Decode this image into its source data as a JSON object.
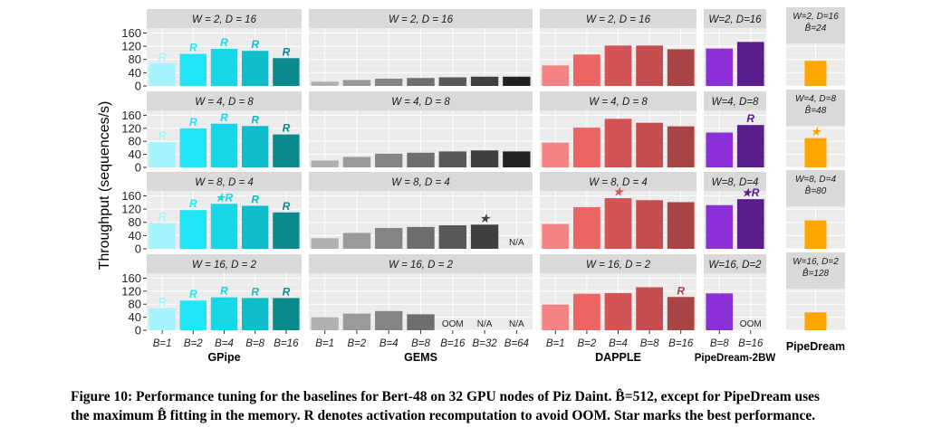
{
  "chart_data": {
    "type": "bar",
    "ylabel": "Throughput (sequences/s)",
    "yticks": [
      0,
      40,
      80,
      120,
      160
    ],
    "ylim": [
      0,
      175
    ],
    "grid": true,
    "rows": [
      {
        "label": "W = 2, D = 16"
      },
      {
        "label": "W = 4, D = 8"
      },
      {
        "label": "W = 8, D = 4"
      },
      {
        "label": "W = 16, D = 2"
      }
    ],
    "facets": [
      {
        "name": "GPipe",
        "categories": [
          "B=1",
          "B=2",
          "B=4",
          "B=8",
          "B=16"
        ],
        "colors": [
          "#a5f3fc",
          "#22e4f7",
          "#16d6e8",
          "#0fbcc9",
          "#0a8a8e"
        ],
        "strips": [
          "W = 2, D = 16",
          "W = 4, D = 8",
          "W = 8, D = 4",
          "W = 16, D = 2"
        ],
        "values": [
          [
            69,
            97,
            112,
            106,
            84
          ],
          [
            78,
            120,
            134,
            127,
            101
          ],
          [
            78,
            117,
            136,
            130,
            110
          ],
          [
            68,
            91,
            101,
            99,
            99
          ]
        ],
        "labels": [
          [
            "R",
            "R",
            "R",
            "R",
            "R"
          ],
          [
            "R",
            "R",
            "R",
            "R",
            "R"
          ],
          [
            "R",
            "R",
            "★R",
            "R",
            "R"
          ],
          [
            "R",
            "R",
            "R",
            "R",
            "R"
          ]
        ]
      },
      {
        "name": "GEMS",
        "categories": [
          "B=1",
          "B=2",
          "B=4",
          "B=8",
          "B=16",
          "B=32",
          "B=64"
        ],
        "colors": [
          "#b0b0b0",
          "#9a9a9a",
          "#848484",
          "#6e6e6e",
          "#585858",
          "#404040",
          "#222222"
        ],
        "strips": [
          "W = 2, D = 16",
          "W = 4, D = 8",
          "W = 8, D = 4",
          "W = 16, D = 2"
        ],
        "values": [
          [
            13,
            18,
            22,
            24,
            26,
            28,
            28
          ],
          [
            21,
            32,
            42,
            45,
            49,
            52,
            49
          ],
          [
            32,
            48,
            63,
            66,
            71,
            73,
            null
          ],
          [
            40,
            51,
            59,
            49,
            null,
            null,
            null
          ]
        ],
        "labels": [
          [
            "",
            "",
            "",
            "",
            "",
            "",
            ""
          ],
          [
            "",
            "",
            "",
            "",
            "",
            "",
            ""
          ],
          [
            "",
            "",
            "",
            "",
            "",
            "★",
            "N/A"
          ],
          [
            "",
            "",
            "",
            "",
            "OOM",
            "N/A",
            "N/A"
          ]
        ]
      },
      {
        "name": "DAPPLE",
        "categories": [
          "B=1",
          "B=2",
          "B=4",
          "B=8",
          "B=16"
        ],
        "colors": [
          "#f48484",
          "#ec6464",
          "#d25454",
          "#c44e4e",
          "#a84444"
        ],
        "strips": [
          "W = 2, D = 16",
          "W = 4, D = 8",
          "W = 8, D = 4",
          "W = 16, D = 2"
        ],
        "values": [
          [
            62,
            95,
            122,
            122,
            111
          ],
          [
            76,
            122,
            149,
            137,
            126
          ],
          [
            75,
            126,
            153,
            147,
            141
          ],
          [
            79,
            112,
            114,
            132,
            102
          ]
        ],
        "labels": [
          [
            "",
            "",
            "",
            "",
            ""
          ],
          [
            "",
            "",
            "",
            "",
            ""
          ],
          [
            "",
            "",
            "★",
            "",
            ""
          ],
          [
            "",
            "",
            "",
            "",
            "R"
          ]
        ]
      },
      {
        "name": "PipeDream-2BW",
        "categories": [
          "B=8",
          "B=16"
        ],
        "colors": [
          "#8b2fd6",
          "#5a1d8c"
        ],
        "strips": [
          "W=2, D=16",
          "W=4, D=8",
          "W=8, D=4",
          "W=16, D=2"
        ],
        "values": [
          [
            113,
            133
          ],
          [
            107,
            130
          ],
          [
            132,
            150
          ],
          [
            113,
            null
          ]
        ],
        "labels": [
          [
            "",
            ""
          ],
          [
            "",
            "R"
          ],
          [
            "",
            "★R"
          ],
          [
            "",
            "OOM"
          ]
        ]
      },
      {
        "name": "PipeDream",
        "categories": [
          ""
        ],
        "colors": [
          "#ffa500"
        ],
        "strips": [
          "W=2, D=16\nB̂=24",
          "W=4, D=8\nB̂=48",
          "W=8, D=4\nB̂=80",
          "W=16, D=2\nB̂=128"
        ],
        "values": [
          [
            76
          ],
          [
            90
          ],
          [
            86
          ],
          [
            55
          ]
        ],
        "labels": [
          [
            ""
          ],
          [
            "★"
          ],
          [
            ""
          ],
          [
            ""
          ]
        ]
      }
    ]
  },
  "caption": {
    "line1": "Figure 10:  Performance tuning for the baselines for Bert-48 on 32 GPU nodes of Piz Daint. B̂=512, except for PipeDream uses",
    "line2": "the maximum B̂ fitting in the memory. R denotes activation recomputation to avoid OOM. Star marks the best performance."
  }
}
